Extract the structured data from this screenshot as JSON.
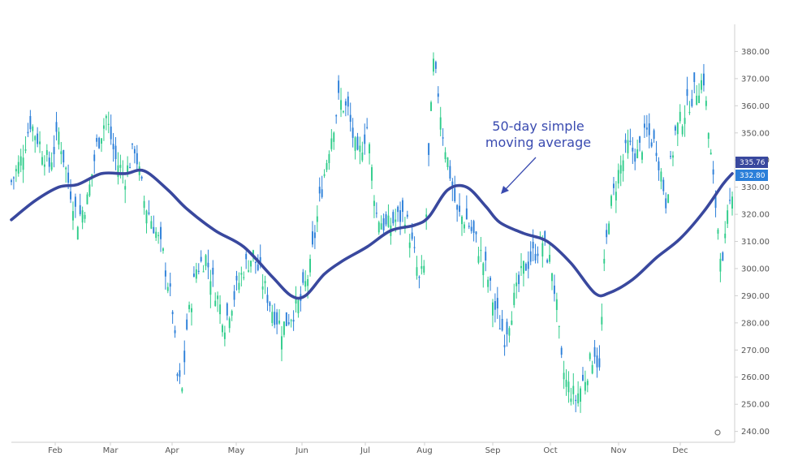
{
  "chart_data": {
    "type": "candlestick",
    "y_axis": {
      "position": "right",
      "ylim": [
        236,
        390
      ],
      "ticks": [
        "240.00",
        "250.00",
        "260.00",
        "270.00",
        "280.00",
        "290.00",
        "300.00",
        "310.00",
        "320.00",
        "330.00",
        "340.00",
        "350.00",
        "360.00",
        "370.00",
        "380.00"
      ]
    },
    "x_axis": {
      "months": [
        "Feb",
        "Mar",
        "Apr",
        "May",
        "Jun",
        "Jul",
        "Aug",
        "Sep",
        "Oct",
        "Nov",
        "Dec"
      ]
    },
    "series": [
      {
        "kind": "candles",
        "up_color": "#2ecc8a",
        "down_color": "#2b7fd9",
        "approx_close_path": [
          {
            "x": 0,
            "y": 332
          },
          {
            "x": 4,
            "y": 340
          },
          {
            "x": 8,
            "y": 354
          },
          {
            "x": 12,
            "y": 346
          },
          {
            "x": 16,
            "y": 338
          },
          {
            "x": 20,
            "y": 350
          },
          {
            "x": 24,
            "y": 332
          },
          {
            "x": 28,
            "y": 318
          },
          {
            "x": 32,
            "y": 325
          },
          {
            "x": 36,
            "y": 345
          },
          {
            "x": 40,
            "y": 356
          },
          {
            "x": 44,
            "y": 340
          },
          {
            "x": 48,
            "y": 334
          },
          {
            "x": 52,
            "y": 345
          },
          {
            "x": 56,
            "y": 325
          },
          {
            "x": 60,
            "y": 316
          },
          {
            "x": 64,
            "y": 305
          },
          {
            "x": 68,
            "y": 285
          },
          {
            "x": 70,
            "y": 260
          },
          {
            "x": 72,
            "y": 255
          },
          {
            "x": 74,
            "y": 278
          },
          {
            "x": 78,
            "y": 300
          },
          {
            "x": 82,
            "y": 304
          },
          {
            "x": 86,
            "y": 292
          },
          {
            "x": 90,
            "y": 280
          },
          {
            "x": 94,
            "y": 290
          },
          {
            "x": 98,
            "y": 300
          },
          {
            "x": 102,
            "y": 305
          },
          {
            "x": 106,
            "y": 295
          },
          {
            "x": 110,
            "y": 285
          },
          {
            "x": 114,
            "y": 278
          },
          {
            "x": 118,
            "y": 283
          },
          {
            "x": 122,
            "y": 288
          },
          {
            "x": 126,
            "y": 300
          },
          {
            "x": 130,
            "y": 325
          },
          {
            "x": 134,
            "y": 345
          },
          {
            "x": 138,
            "y": 362
          },
          {
            "x": 142,
            "y": 358
          },
          {
            "x": 146,
            "y": 340
          },
          {
            "x": 150,
            "y": 352
          },
          {
            "x": 154,
            "y": 320
          },
          {
            "x": 158,
            "y": 315
          },
          {
            "x": 162,
            "y": 318
          },
          {
            "x": 166,
            "y": 320
          },
          {
            "x": 170,
            "y": 305
          },
          {
            "x": 172,
            "y": 295
          },
          {
            "x": 174,
            "y": 300
          },
          {
            "x": 176,
            "y": 340
          },
          {
            "x": 178,
            "y": 375
          },
          {
            "x": 180,
            "y": 365
          },
          {
            "x": 182,
            "y": 350
          },
          {
            "x": 184,
            "y": 340
          },
          {
            "x": 188,
            "y": 320
          },
          {
            "x": 192,
            "y": 318
          },
          {
            "x": 196,
            "y": 310
          },
          {
            "x": 200,
            "y": 300
          },
          {
            "x": 204,
            "y": 285
          },
          {
            "x": 208,
            "y": 275
          },
          {
            "x": 212,
            "y": 288
          },
          {
            "x": 216,
            "y": 300
          },
          {
            "x": 220,
            "y": 305
          },
          {
            "x": 224,
            "y": 310
          },
          {
            "x": 228,
            "y": 300
          },
          {
            "x": 230,
            "y": 285
          },
          {
            "x": 232,
            "y": 265
          },
          {
            "x": 234,
            "y": 258
          },
          {
            "x": 238,
            "y": 252
          },
          {
            "x": 242,
            "y": 260
          },
          {
            "x": 246,
            "y": 270
          },
          {
            "x": 248,
            "y": 262
          },
          {
            "x": 250,
            "y": 300
          },
          {
            "x": 252,
            "y": 320
          },
          {
            "x": 256,
            "y": 335
          },
          {
            "x": 260,
            "y": 345
          },
          {
            "x": 264,
            "y": 342
          },
          {
            "x": 268,
            "y": 350
          },
          {
            "x": 272,
            "y": 345
          },
          {
            "x": 276,
            "y": 325
          },
          {
            "x": 280,
            "y": 350
          },
          {
            "x": 284,
            "y": 358
          },
          {
            "x": 288,
            "y": 365
          },
          {
            "x": 292,
            "y": 370
          },
          {
            "x": 294,
            "y": 350
          },
          {
            "x": 296,
            "y": 332
          },
          {
            "x": 298,
            "y": 315
          },
          {
            "x": 300,
            "y": 300
          },
          {
            "x": 302,
            "y": 318
          },
          {
            "x": 304,
            "y": 330
          }
        ]
      },
      {
        "kind": "line",
        "color": "#39489e",
        "approx_path": [
          {
            "x": 0,
            "y": 318
          },
          {
            "x": 10,
            "y": 325
          },
          {
            "x": 20,
            "y": 330
          },
          {
            "x": 28,
            "y": 331
          },
          {
            "x": 38,
            "y": 335
          },
          {
            "x": 48,
            "y": 335
          },
          {
            "x": 56,
            "y": 336
          },
          {
            "x": 66,
            "y": 329
          },
          {
            "x": 74,
            "y": 322
          },
          {
            "x": 86,
            "y": 314
          },
          {
            "x": 98,
            "y": 308
          },
          {
            "x": 110,
            "y": 297
          },
          {
            "x": 118,
            "y": 290
          },
          {
            "x": 124,
            "y": 290
          },
          {
            "x": 132,
            "y": 298
          },
          {
            "x": 140,
            "y": 303
          },
          {
            "x": 150,
            "y": 308
          },
          {
            "x": 160,
            "y": 314
          },
          {
            "x": 170,
            "y": 316
          },
          {
            "x": 176,
            "y": 319
          },
          {
            "x": 184,
            "y": 329
          },
          {
            "x": 192,
            "y": 330
          },
          {
            "x": 200,
            "y": 323
          },
          {
            "x": 206,
            "y": 317
          },
          {
            "x": 216,
            "y": 313
          },
          {
            "x": 226,
            "y": 310
          },
          {
            "x": 236,
            "y": 302
          },
          {
            "x": 246,
            "y": 291
          },
          {
            "x": 252,
            "y": 291
          },
          {
            "x": 262,
            "y": 296
          },
          {
            "x": 272,
            "y": 304
          },
          {
            "x": 282,
            "y": 311
          },
          {
            "x": 292,
            "y": 321
          },
          {
            "x": 300,
            "y": 331
          },
          {
            "x": 304,
            "y": 335
          }
        ]
      }
    ],
    "annotation": {
      "lines": [
        "50-day simple",
        "moving average"
      ]
    },
    "last_price_badges": [
      {
        "label": "335.76",
        "color": "#39489e"
      },
      {
        "label": "332.80",
        "color": "#2b7fd9"
      }
    ],
    "grid": false
  }
}
